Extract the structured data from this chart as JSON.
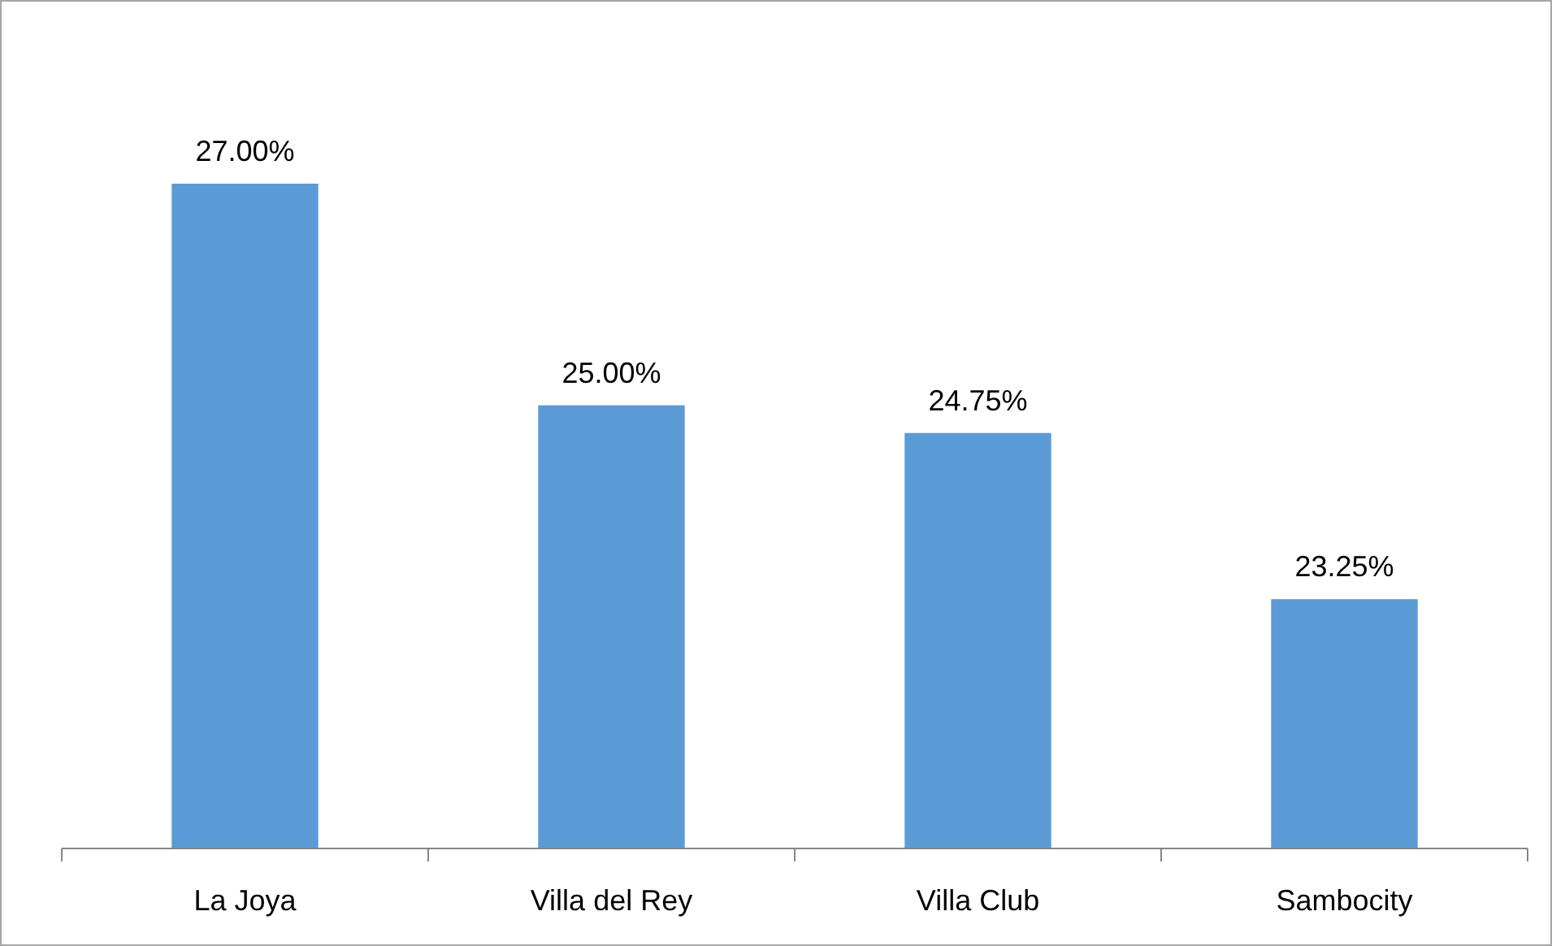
{
  "chart_data": {
    "type": "bar",
    "categories": [
      "La Joya",
      "Villa del Rey",
      "Villa Club",
      "Sambocity"
    ],
    "values": [
      27,
      25,
      24.75,
      23.25
    ],
    "value_labels": [
      "27.00%",
      "25.00%",
      "24.75%",
      "23.25%"
    ],
    "color": "#5b9bd5",
    "ylim": [
      21,
      27
    ],
    "tick_labels": "x"
  }
}
